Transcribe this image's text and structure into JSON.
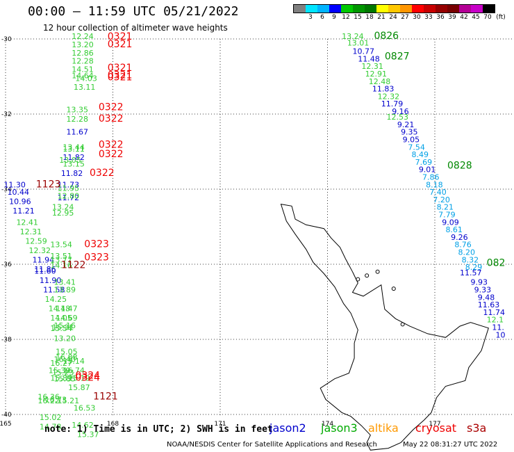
{
  "title": "00:00 – 11:59 UTC 05/21/2022",
  "subtitle": "12 hour collection of altimeter wave heights",
  "legend": {
    "unit": "(ft)",
    "entries": [
      {
        "label": "",
        "color": "#808080"
      },
      {
        "label": "3",
        "color": "#00e5ff"
      },
      {
        "label": "6",
        "color": "#00b4ff"
      },
      {
        "label": "9",
        "color": "#0000ff"
      },
      {
        "label": "12",
        "color": "#00c800"
      },
      {
        "label": "15",
        "color": "#009600"
      },
      {
        "label": "18",
        "color": "#007800"
      },
      {
        "label": "21",
        "color": "#ffff00"
      },
      {
        "label": "24",
        "color": "#ffc800"
      },
      {
        "label": "27",
        "color": "#ff9600"
      },
      {
        "label": "30",
        "color": "#ff0000"
      },
      {
        "label": "33",
        "color": "#c80000"
      },
      {
        "label": "36",
        "color": "#960000"
      },
      {
        "label": "39",
        "color": "#780000"
      },
      {
        "label": "42",
        "color": "#b40096"
      },
      {
        "label": "45",
        "color": "#c800c8"
      },
      {
        "label": "70",
        "color": "#000000"
      }
    ]
  },
  "axes": {
    "lat_labels": [
      "-30",
      "-32",
      "-34",
      "-36",
      "-38",
      "-40"
    ],
    "lon_labels": [
      "165",
      "168",
      "171",
      "174",
      "177"
    ],
    "lat_values": [
      -30,
      -32,
      -34,
      -36,
      -38,
      -40
    ],
    "lon_values": [
      165,
      168,
      171,
      174,
      177
    ]
  },
  "note": "note:  1) Time is in UTC; 2) SWH is in feet",
  "satellites": [
    {
      "name": "jason2",
      "color": "#0000cc"
    },
    {
      "name": "jason3",
      "color": "#00aa00"
    },
    {
      "name": "altika",
      "color": "#ff9900"
    },
    {
      "name": "cryosat",
      "color": "#ee0000"
    },
    {
      "name": "s3a",
      "color": "#aa0000"
    }
  ],
  "footer": {
    "center": "NOAA/NESDIS Center for Satellite Applications and Research",
    "right": "May 22 08:31:27 UTC 2022"
  },
  "colors": {
    "lt_green": "#33cc33",
    "blue": "#0000cc",
    "cyan": "#00a0e6",
    "red": "#ee0000",
    "darkred": "#990000",
    "green": "#008800"
  },
  "track_times": [
    {
      "text": "0321",
      "lat": -30.02,
      "lon": 167.85,
      "c": "red"
    },
    {
      "text": "0321",
      "lat": -30.22,
      "lon": 167.85,
      "c": "red"
    },
    {
      "text": "0321",
      "lat": -30.85,
      "lon": 167.85,
      "c": "red"
    },
    {
      "text": "0321",
      "lat": -31.05,
      "lon": 167.85,
      "c": "red"
    },
    {
      "text": "0321",
      "lat": -31.1,
      "lon": 167.85,
      "c": "red"
    },
    {
      "text": "0322",
      "lat": -31.9,
      "lon": 167.6,
      "c": "red"
    },
    {
      "text": "0322",
      "lat": -32.2,
      "lon": 167.6,
      "c": "red"
    },
    {
      "text": "0322",
      "lat": -32.9,
      "lon": 167.6,
      "c": "red"
    },
    {
      "text": "0322",
      "lat": -33.15,
      "lon": 167.6,
      "c": "red"
    },
    {
      "text": "0322",
      "lat": -33.65,
      "lon": 167.35,
      "c": "red"
    },
    {
      "text": "0323",
      "lat": -35.55,
      "lon": 167.2,
      "c": "red"
    },
    {
      "text": "0323",
      "lat": -35.9,
      "lon": 167.2,
      "c": "red"
    },
    {
      "text": "0324",
      "lat": -39.05,
      "lon": 166.95,
      "c": "red"
    },
    {
      "text": "0324",
      "lat": -39.1,
      "lon": 166.95,
      "c": "red"
    },
    {
      "text": "1123",
      "lat": -33.95,
      "lon": 165.85,
      "c": "darkred"
    },
    {
      "text": "1122",
      "lat": -36.1,
      "lon": 166.55,
      "c": "darkred"
    },
    {
      "text": "1121",
      "lat": -39.6,
      "lon": 167.45,
      "c": "darkred"
    },
    {
      "text": "0826",
      "lat": -30.0,
      "lon": 175.3,
      "c": "green"
    },
    {
      "text": "0827",
      "lat": -30.55,
      "lon": 175.6,
      "c": "green"
    },
    {
      "text": "0828",
      "lat": -33.45,
      "lon": 177.35,
      "c": "green"
    },
    {
      "text": "082",
      "lat": -36.05,
      "lon": 178.45,
      "c": "green"
    }
  ],
  "swh_values": [
    {
      "text": "12.24",
      "lat": -30.0,
      "lon": 166.85,
      "c": "lt_green"
    },
    {
      "text": "13.20",
      "lat": -30.22,
      "lon": 166.85,
      "c": "lt_green"
    },
    {
      "text": "12.86",
      "lat": -30.44,
      "lon": 166.85,
      "c": "lt_green"
    },
    {
      "text": "12.28",
      "lat": -30.66,
      "lon": 166.85,
      "c": "lt_green"
    },
    {
      "text": "14.51",
      "lat": -30.88,
      "lon": 166.85,
      "c": "lt_green"
    },
    {
      "text": "14.64",
      "lat": -31.05,
      "lon": 166.85,
      "c": "lt_green"
    },
    {
      "text": "14.03",
      "lat": -31.12,
      "lon": 166.95,
      "c": "lt_green"
    },
    {
      "text": "13.11",
      "lat": -31.35,
      "lon": 166.9,
      "c": "lt_green"
    },
    {
      "text": "13.35",
      "lat": -31.95,
      "lon": 166.7,
      "c": "lt_green"
    },
    {
      "text": "12.28",
      "lat": -32.2,
      "lon": 166.7,
      "c": "lt_green"
    },
    {
      "text": "11.67",
      "lat": -32.55,
      "lon": 166.7,
      "c": "blue"
    },
    {
      "text": "13.44",
      "lat": -32.95,
      "lon": 166.6,
      "c": "lt_green"
    },
    {
      "text": "13.11",
      "lat": -33.0,
      "lon": 166.6,
      "c": "lt_green"
    },
    {
      "text": "11.82",
      "lat": -33.22,
      "lon": 166.6,
      "c": "blue"
    },
    {
      "text": "13.05",
      "lat": -33.3,
      "lon": 166.5,
      "c": "lt_green"
    },
    {
      "text": "13.15",
      "lat": -33.4,
      "lon": 166.6,
      "c": "lt_green"
    },
    {
      "text": "11.82",
      "lat": -33.65,
      "lon": 166.55,
      "c": "blue"
    },
    {
      "text": "11.73",
      "lat": -33.95,
      "lon": 166.45,
      "c": "blue"
    },
    {
      "text": "11.95",
      "lat": -34.05,
      "lon": 166.45,
      "c": "lt_green"
    },
    {
      "text": "11.72",
      "lat": -34.3,
      "lon": 166.45,
      "c": "blue"
    },
    {
      "text": "12.80",
      "lat": -34.25,
      "lon": 166.45,
      "c": "lt_green"
    },
    {
      "text": "13.24",
      "lat": -34.55,
      "lon": 166.3,
      "c": "lt_green"
    },
    {
      "text": "12.95",
      "lat": -34.7,
      "lon": 166.3,
      "c": "lt_green"
    },
    {
      "text": "11.30",
      "lat": -33.95,
      "lon": 164.95,
      "c": "blue"
    },
    {
      "text": "10.44",
      "lat": -34.15,
      "lon": 165.05,
      "c": "blue"
    },
    {
      "text": "10.96",
      "lat": -34.4,
      "lon": 165.1,
      "c": "blue"
    },
    {
      "text": "11.21",
      "lat": -34.65,
      "lon": 165.2,
      "c": "blue"
    },
    {
      "text": "12.41",
      "lat": -34.95,
      "lon": 165.3,
      "c": "lt_green"
    },
    {
      "text": "12.31",
      "lat": -35.2,
      "lon": 165.4,
      "c": "lt_green"
    },
    {
      "text": "12.59",
      "lat": -35.45,
      "lon": 165.55,
      "c": "lt_green"
    },
    {
      "text": "12.32",
      "lat": -35.7,
      "lon": 165.65,
      "c": "lt_green"
    },
    {
      "text": "11.94",
      "lat": -35.95,
      "lon": 165.75,
      "c": "blue"
    },
    {
      "text": "11.86",
      "lat": -36.2,
      "lon": 165.8,
      "c": "blue"
    },
    {
      "text": "11.60",
      "lat": -36.25,
      "lon": 165.8,
      "c": "blue"
    },
    {
      "text": "13.54",
      "lat": -35.55,
      "lon": 166.25,
      "c": "lt_green"
    },
    {
      "text": "13.51",
      "lat": -35.85,
      "lon": 166.25,
      "c": "lt_green"
    },
    {
      "text": "13.77",
      "lat": -35.95,
      "lon": 166.25,
      "c": "lt_green"
    },
    {
      "text": "14.16",
      "lat": -36.1,
      "lon": 166.25,
      "c": "lt_green"
    },
    {
      "text": "11.90",
      "lat": -36.5,
      "lon": 165.95,
      "c": "blue"
    },
    {
      "text": "13.41",
      "lat": -36.55,
      "lon": 166.35,
      "c": "lt_green"
    },
    {
      "text": "11.58",
      "lat": -36.75,
      "lon": 166.05,
      "c": "blue"
    },
    {
      "text": "13.89",
      "lat": -36.75,
      "lon": 166.35,
      "c": "lt_green"
    },
    {
      "text": "14.25",
      "lat": -37.0,
      "lon": 166.1,
      "c": "lt_green"
    },
    {
      "text": "14.18",
      "lat": -37.25,
      "lon": 166.2,
      "c": "lt_green"
    },
    {
      "text": "14.47",
      "lat": -37.25,
      "lon": 166.4,
      "c": "lt_green"
    },
    {
      "text": "14.05",
      "lat": -37.5,
      "lon": 166.25,
      "c": "lt_green"
    },
    {
      "text": "14.69",
      "lat": -37.5,
      "lon": 166.4,
      "c": "lt_green"
    },
    {
      "text": "15.16",
      "lat": -37.7,
      "lon": 166.35,
      "c": "lt_green"
    },
    {
      "text": "15.31",
      "lat": -37.75,
      "lon": 166.3,
      "c": "lt_green"
    },
    {
      "text": "15.54",
      "lat": -37.78,
      "lon": 166.25,
      "c": "lt_green"
    },
    {
      "text": "13.20",
      "lat": -38.05,
      "lon": 166.35,
      "c": "lt_green"
    },
    {
      "text": "15.05",
      "lat": -38.4,
      "lon": 166.4,
      "c": "lt_green"
    },
    {
      "text": "16.88",
      "lat": -38.55,
      "lon": 166.4,
      "c": "lt_green"
    },
    {
      "text": "16.40",
      "lat": -38.6,
      "lon": 166.35,
      "c": "lt_green"
    },
    {
      "text": "15.14",
      "lat": -38.65,
      "lon": 166.6,
      "c": "lt_green"
    },
    {
      "text": "16.27",
      "lat": -38.7,
      "lon": 166.25,
      "c": "lt_green"
    },
    {
      "text": "15.30",
      "lat": -38.9,
      "lon": 166.2,
      "c": "lt_green"
    },
    {
      "text": "16.74",
      "lat": -38.9,
      "lon": 166.6,
      "c": "lt_green"
    },
    {
      "text": "15.23",
      "lat": -38.95,
      "lon": 166.3,
      "c": "lt_green"
    },
    {
      "text": "15.89",
      "lat": -39.1,
      "lon": 166.25,
      "c": "lt_green"
    },
    {
      "text": "15.19",
      "lat": -39.1,
      "lon": 166.75,
      "c": "lt_green"
    },
    {
      "text": "15.85",
      "lat": -39.12,
      "lon": 166.35,
      "c": "lt_green"
    },
    {
      "text": "15.87",
      "lat": -39.35,
      "lon": 166.75,
      "c": "lt_green"
    },
    {
      "text": "16.36",
      "lat": -39.6,
      "lon": 165.9,
      "c": "lt_green"
    },
    {
      "text": "16.22",
      "lat": -39.7,
      "lon": 165.9,
      "c": "lt_green"
    },
    {
      "text": "16.73",
      "lat": -39.68,
      "lon": 166.1,
      "c": "lt_green"
    },
    {
      "text": "15.21",
      "lat": -39.7,
      "lon": 166.45,
      "c": "lt_green"
    },
    {
      "text": "16.53",
      "lat": -39.9,
      "lon": 166.9,
      "c": "lt_green"
    },
    {
      "text": "15.02",
      "lat": -40.15,
      "lon": 165.95,
      "c": "lt_green"
    },
    {
      "text": "14.62",
      "lat": -40.35,
      "lon": 166.85,
      "c": "lt_green"
    },
    {
      "text": "14.78",
      "lat": -40.4,
      "lon": 165.95,
      "c": "lt_green"
    },
    {
      "text": "15.37",
      "lat": -40.6,
      "lon": 167.0,
      "c": "lt_green"
    },
    {
      "text": "13.24",
      "lat": -30.0,
      "lon": 174.4,
      "c": "lt_green"
    },
    {
      "text": "13.01",
      "lat": -30.18,
      "lon": 174.55,
      "c": "lt_green"
    },
    {
      "text": "10.77",
      "lat": -30.4,
      "lon": 174.7,
      "c": "blue"
    },
    {
      "text": "11.48",
      "lat": -30.6,
      "lon": 174.85,
      "c": "blue"
    },
    {
      "text": "12.31",
      "lat": -30.8,
      "lon": 174.95,
      "c": "lt_green"
    },
    {
      "text": "12.91",
      "lat": -31.0,
      "lon": 175.05,
      "c": "lt_green"
    },
    {
      "text": "12.48",
      "lat": -31.2,
      "lon": 175.15,
      "c": "lt_green"
    },
    {
      "text": "11.83",
      "lat": -31.4,
      "lon": 175.25,
      "c": "blue"
    },
    {
      "text": "12.32",
      "lat": -31.6,
      "lon": 175.4,
      "c": "lt_green"
    },
    {
      "text": "11.79",
      "lat": -31.8,
      "lon": 175.5,
      "c": "blue"
    },
    {
      "text": "9.16",
      "lat": -32.0,
      "lon": 175.8,
      "c": "blue"
    },
    {
      "text": "12.53",
      "lat": -32.15,
      "lon": 175.65,
      "c": "lt_green"
    },
    {
      "text": "9.21",
      "lat": -32.35,
      "lon": 175.95,
      "c": "blue"
    },
    {
      "text": "9.35",
      "lat": -32.55,
      "lon": 176.05,
      "c": "blue"
    },
    {
      "text": "9.05",
      "lat": -32.75,
      "lon": 176.1,
      "c": "blue"
    },
    {
      "text": "7.54",
      "lat": -32.95,
      "lon": 176.25,
      "c": "cyan"
    },
    {
      "text": "8.49",
      "lat": -33.15,
      "lon": 176.35,
      "c": "cyan"
    },
    {
      "text": "7.69",
      "lat": -33.35,
      "lon": 176.45,
      "c": "cyan"
    },
    {
      "text": "9.01",
      "lat": -33.55,
      "lon": 176.55,
      "c": "blue"
    },
    {
      "text": "7.86",
      "lat": -33.75,
      "lon": 176.65,
      "c": "cyan"
    },
    {
      "text": "8.18",
      "lat": -33.95,
      "lon": 176.75,
      "c": "cyan"
    },
    {
      "text": "7.40",
      "lat": -34.15,
      "lon": 176.85,
      "c": "cyan"
    },
    {
      "text": "7.20",
      "lat": -34.35,
      "lon": 176.95,
      "c": "cyan"
    },
    {
      "text": "8.21",
      "lat": -34.55,
      "lon": 177.05,
      "c": "cyan"
    },
    {
      "text": "7.79",
      "lat": -34.75,
      "lon": 177.1,
      "c": "cyan"
    },
    {
      "text": "9.09",
      "lat": -34.95,
      "lon": 177.2,
      "c": "blue"
    },
    {
      "text": "8.61",
      "lat": -35.15,
      "lon": 177.3,
      "c": "cyan"
    },
    {
      "text": "9.26",
      "lat": -35.35,
      "lon": 177.45,
      "c": "blue"
    },
    {
      "text": "8.76",
      "lat": -35.55,
      "lon": 177.55,
      "c": "cyan"
    },
    {
      "text": "8.20",
      "lat": -35.75,
      "lon": 177.65,
      "c": "cyan"
    },
    {
      "text": "8.32",
      "lat": -35.95,
      "lon": 177.75,
      "c": "cyan"
    },
    {
      "text": "8.29",
      "lat": -36.15,
      "lon": 177.85,
      "c": "cyan"
    },
    {
      "text": "11.57",
      "lat": -36.3,
      "lon": 177.7,
      "c": "blue"
    },
    {
      "text": "9.93",
      "lat": -36.55,
      "lon": 178.0,
      "c": "blue"
    },
    {
      "text": "9.33",
      "lat": -36.75,
      "lon": 178.1,
      "c": "blue"
    },
    {
      "text": "9.48",
      "lat": -36.95,
      "lon": 178.2,
      "c": "blue"
    },
    {
      "text": "11.63",
      "lat": -37.15,
      "lon": 178.2,
      "c": "blue"
    },
    {
      "text": "11.74",
      "lat": -37.35,
      "lon": 178.35,
      "c": "blue"
    },
    {
      "text": "12.1",
      "lat": -37.55,
      "lon": 178.45,
      "c": "lt_green"
    },
    {
      "text": "11.",
      "lat": -37.75,
      "lon": 178.6,
      "c": "blue"
    },
    {
      "text": "10",
      "lat": -37.95,
      "lon": 178.7,
      "c": "blue"
    }
  ]
}
